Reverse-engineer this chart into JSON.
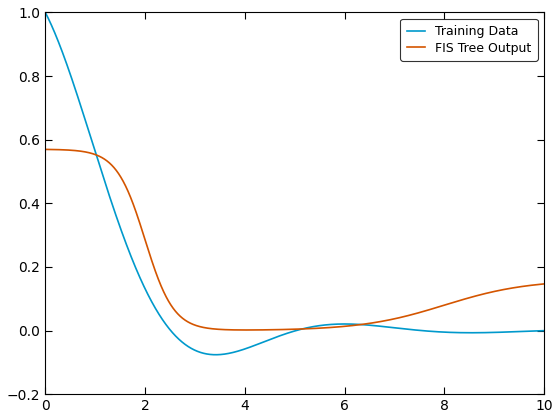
{
  "title": "",
  "xlabel": "",
  "ylabel": "",
  "xlim": [
    0,
    10
  ],
  "ylim": [
    -0.2,
    1.0
  ],
  "xticks": [
    0,
    2,
    4,
    6,
    8,
    10
  ],
  "yticks": [
    -0.2,
    0,
    0.2,
    0.4,
    0.6,
    0.8,
    1.0
  ],
  "training_color": "#0099CC",
  "fis_color": "#D45500",
  "legend_labels": [
    "Training Data",
    "FIS Tree Output"
  ],
  "legend_loc": "upper right",
  "background_color": "#ffffff",
  "linewidth": 1.2,
  "tick_labelsize": 10
}
